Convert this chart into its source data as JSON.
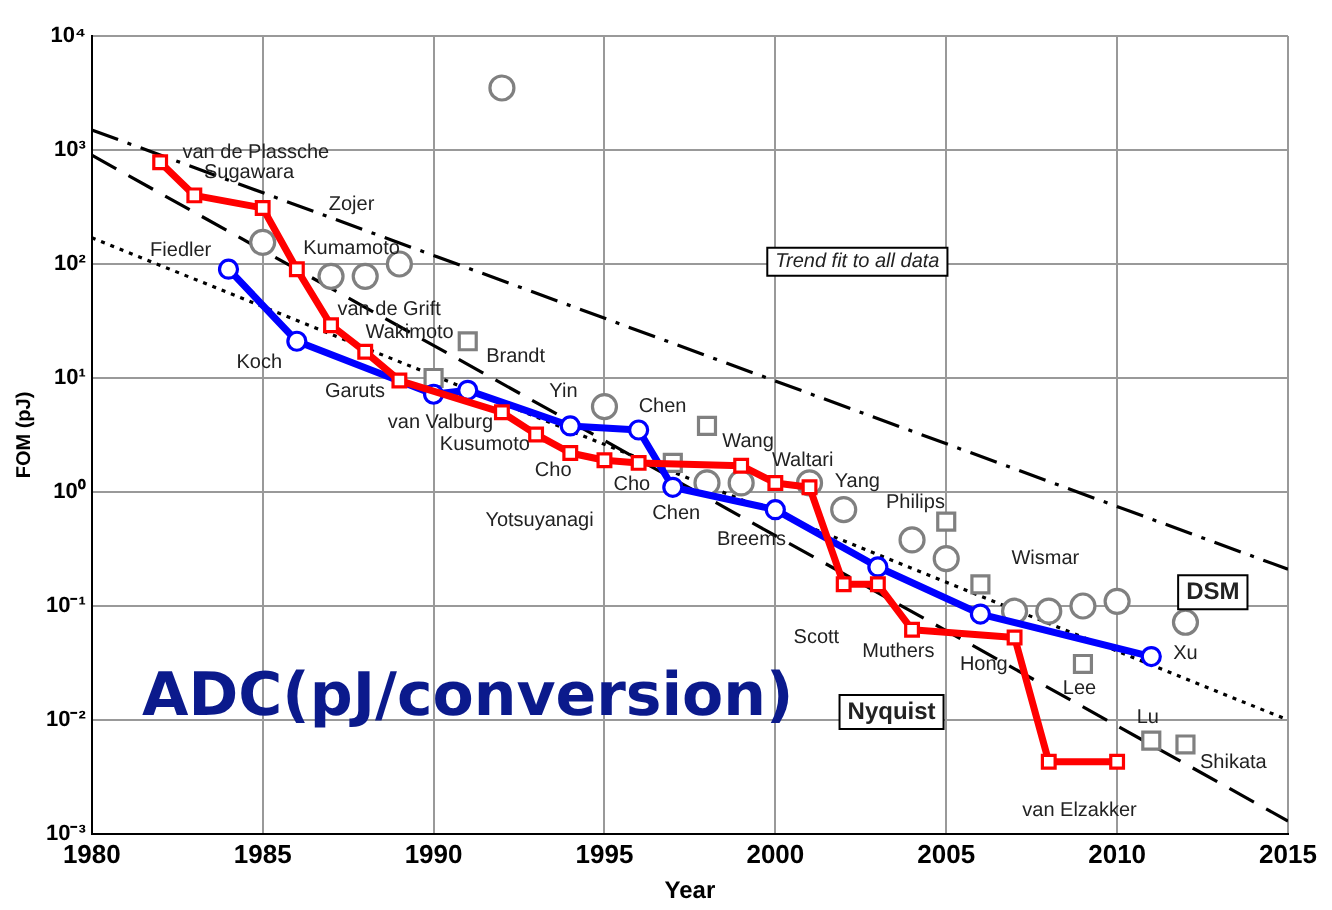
{
  "chart_data": {
    "type": "line",
    "xlabel": "Year",
    "ylabel": "FOM (pJ)",
    "xlim": [
      1980,
      2015
    ],
    "xticks": [
      1980,
      1985,
      1990,
      1995,
      2000,
      2005,
      2010,
      2015
    ],
    "ylim": [
      0.001,
      10000
    ],
    "log": "y",
    "yticks": [
      {
        "value": 0.001,
        "label": "10⁻³"
      },
      {
        "value": 0.01,
        "label": "10⁻²"
      },
      {
        "value": 0.1,
        "label": "10⁻¹"
      },
      {
        "value": 1,
        "label": "10⁰"
      },
      {
        "value": 10,
        "label": "10¹"
      },
      {
        "value": 100,
        "label": "10²"
      },
      {
        "value": 1000,
        "label": "10³"
      },
      {
        "value": 10000,
        "label": "10⁴"
      }
    ],
    "grid": true,
    "legend": false,
    "series": [
      {
        "type": "line",
        "color": "#ff0000",
        "marker": "square",
        "x": [
          1982,
          1983,
          1985,
          1986,
          1987,
          1988,
          1989,
          1992,
          1993,
          1994,
          1995,
          1996,
          1999,
          2000,
          2001,
          2002,
          2003,
          2004,
          2007,
          2008,
          2010
        ],
        "values": [
          780,
          400,
          310,
          90,
          29,
          17,
          9.5,
          5,
          3.2,
          2.2,
          1.9,
          1.8,
          1.7,
          1.2,
          1.1,
          0.155,
          0.155,
          0.062,
          0.053,
          0.0043,
          0.0043
        ]
      },
      {
        "type": "line",
        "color": "#0000ff",
        "marker": "circle",
        "x": [
          1984,
          1986,
          1990,
          1991,
          1994,
          1996,
          1997,
          2000,
          2003,
          2006,
          2011
        ],
        "values": [
          90,
          21,
          7.2,
          7.8,
          3.8,
          3.5,
          1.1,
          0.7,
          0.22,
          0.085,
          0.036
        ]
      },
      {
        "type": "scatter",
        "color": "#808080",
        "marker": "circle",
        "x": [
          1985,
          1987,
          1988,
          1989,
          1992,
          1995,
          1998,
          1999,
          2001,
          2002,
          2004,
          2005,
          2007,
          2008,
          2009,
          2010,
          2012
        ],
        "values": [
          155,
          78,
          78,
          100,
          3500,
          5.6,
          1.2,
          1.2,
          1.2,
          0.7,
          0.38,
          0.26,
          0.09,
          0.09,
          0.1,
          0.11,
          0.072
        ]
      },
      {
        "type": "scatter",
        "color": "#808080",
        "marker": "square",
        "x": [
          1990,
          1991,
          1997,
          1998,
          2005,
          2006,
          2009,
          2011,
          2012
        ],
        "values": [
          10,
          21,
          1.8,
          3.8,
          0.55,
          0.155,
          0.031,
          0.0066,
          0.0061
        ]
      },
      {
        "type": "line",
        "color": "#000000",
        "marker": "none",
        "line_style": "dashdot",
        "x": [
          1980,
          2015
        ],
        "values": [
          1500,
          0.21
        ]
      },
      {
        "type": "line",
        "color": "#000000",
        "marker": "none",
        "line_style": "dashed",
        "x": [
          1980,
          2015
        ],
        "values": [
          900,
          0.0013
        ]
      },
      {
        "type": "line",
        "color": "#000000",
        "marker": "none",
        "line_style": "dotted",
        "x": [
          1980,
          2015
        ],
        "values": [
          170,
          0.01
        ]
      }
    ],
    "annotations": [
      "van de Plassche",
      "Sugawara",
      "Zojer",
      "Kumamoto",
      "Fiedler",
      "van de Grift",
      "Wakimoto",
      "Koch",
      "Brandt",
      "Garuts",
      "Yin",
      "van Valburg",
      "Kusumoto",
      "Cho",
      "Yotsuyanagi",
      "Chen",
      "Wang",
      "Waltari",
      "Cho",
      "Yang",
      "Chen",
      "Philips",
      "Breems",
      "Wismar",
      "DSM",
      "Scott",
      "Muthers",
      "Xu",
      "Hong",
      "Lee",
      "Nyquist",
      "Lu",
      "Shikata",
      "van Elzakker",
      "Trend fit to all data",
      "ADC(pJ/conversion)"
    ]
  }
}
